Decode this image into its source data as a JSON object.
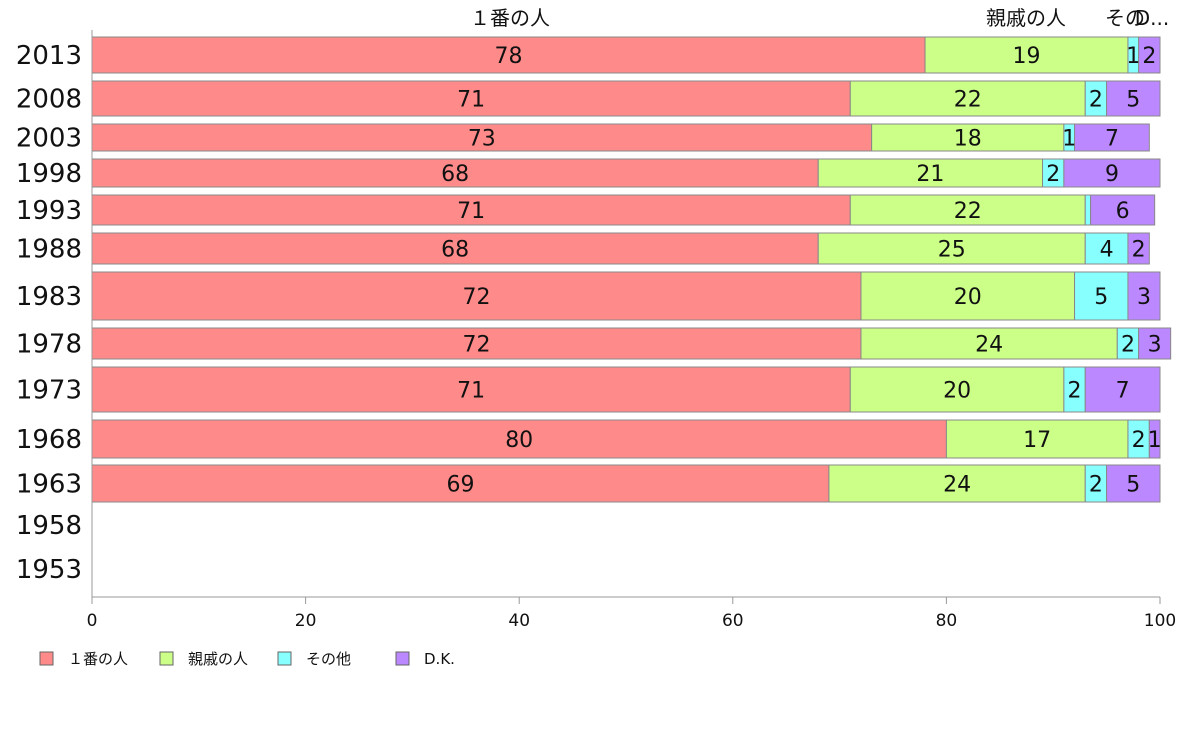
{
  "chart_data": {
    "type": "bar",
    "orientation": "horizontal",
    "stacked": true,
    "categories": [
      "2013",
      "2008",
      "2003",
      "1998",
      "1993",
      "1988",
      "1983",
      "1978",
      "1973",
      "1968",
      "1963",
      "1958",
      "1953"
    ],
    "series": [
      {
        "name": "１番の人",
        "color": "#ff8a8a",
        "values": [
          78,
          71,
          73,
          68,
          71,
          68,
          72,
          72,
          71,
          80,
          69,
          null,
          null
        ]
      },
      {
        "name": "親戚の人",
        "color": "#ccff88",
        "values": [
          19,
          22,
          18,
          21,
          22,
          25,
          20,
          24,
          20,
          17,
          24,
          null,
          null
        ]
      },
      {
        "name": "その他",
        "color": "#88ffff",
        "values": [
          1,
          2,
          1,
          2,
          0.5,
          4,
          5,
          2,
          2,
          2,
          2,
          null,
          null
        ]
      },
      {
        "name": "D.K.",
        "color": "#bb88ff",
        "values": [
          2,
          5,
          7,
          9,
          6,
          2,
          3,
          3,
          7,
          1,
          5,
          null,
          null
        ]
      }
    ],
    "bar_labels": [
      [
        "78",
        "19",
        "1",
        "2"
      ],
      [
        "71",
        "22",
        "2",
        "5"
      ],
      [
        "73",
        "18",
        "1",
        "7"
      ],
      [
        "68",
        "21",
        "2",
        "9"
      ],
      [
        "71",
        "22",
        "",
        "6"
      ],
      [
        "68",
        "25",
        "4",
        "2"
      ],
      [
        "72",
        "20",
        "5",
        "3"
      ],
      [
        "72",
        "24",
        "2",
        "3"
      ],
      [
        "71",
        "20",
        "2",
        "7"
      ],
      [
        "80",
        "17",
        "2",
        "1"
      ],
      [
        "69",
        "24",
        "2",
        "5"
      ],
      [
        "",
        "",
        "",
        ""
      ],
      [
        "",
        "",
        "",
        ""
      ]
    ],
    "header_labels": [
      "１番の人",
      "親戚の人",
      "その",
      "D..."
    ],
    "xlim": [
      0,
      100
    ],
    "xticks": [
      "0",
      "20",
      "40",
      "60",
      "80",
      "100"
    ],
    "grid": false,
    "legend_position": "bottom-left"
  }
}
